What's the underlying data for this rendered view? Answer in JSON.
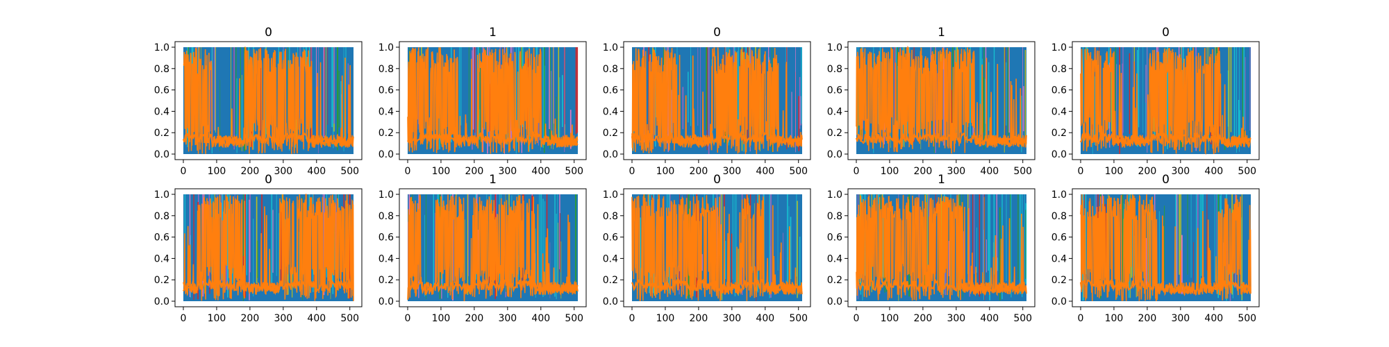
{
  "figure": {
    "background": "#ffffff",
    "grid": false,
    "colors": {
      "blue": "#1f77b4",
      "orange": "#ff7f0e",
      "cyan": "#17becf",
      "olive": "#bcbd22",
      "green": "#2ca02c",
      "pink": "#e377c2",
      "red": "#d62728",
      "purple": "#9467bd"
    }
  },
  "chart_data": [
    {
      "type": "line",
      "title": "0",
      "xlabel": "",
      "ylabel": "",
      "xlim": [
        0,
        511
      ],
      "ylim": [
        0,
        1
      ],
      "xticks": [
        "0",
        "100",
        "200",
        "300",
        "400",
        "500"
      ],
      "yticks": [
        "0.0",
        "0.2",
        "0.4",
        "0.6",
        "0.8",
        "1.0"
      ],
      "orange_high_regions": [
        [
          0,
          85
        ],
        [
          185,
          385
        ]
      ],
      "series": [
        {
          "values_summary": "dense overlapping lines in range 0–1, 512 points each"
        }
      ]
    },
    {
      "type": "line",
      "title": "1",
      "xlabel": "",
      "ylabel": "",
      "xlim": [
        0,
        511
      ],
      "ylim": [
        0,
        1
      ],
      "xticks": [
        "0",
        "100",
        "200",
        "300",
        "400",
        "500"
      ],
      "yticks": [
        "0.0",
        "0.2",
        "0.4",
        "0.6",
        "0.8",
        "1.0"
      ],
      "orange_high_regions": [
        [
          0,
          150
        ],
        [
          210,
          400
        ]
      ],
      "series": [
        {
          "values_summary": "dense overlapping lines in range 0–1, 512 points each"
        }
      ]
    },
    {
      "type": "line",
      "title": "0",
      "xlabel": "",
      "ylabel": "",
      "xlim": [
        0,
        511
      ],
      "ylim": [
        0,
        1
      ],
      "xticks": [
        "0",
        "100",
        "200",
        "300",
        "400",
        "500"
      ],
      "yticks": [
        "0.0",
        "0.2",
        "0.4",
        "0.6",
        "0.8",
        "1.0"
      ],
      "orange_high_regions": [
        [
          0,
          130
        ],
        [
          235,
          440
        ]
      ],
      "series": [
        {
          "values_summary": "dense overlapping lines in range 0–1, 512 points each"
        }
      ]
    },
    {
      "type": "line",
      "title": "1",
      "xlabel": "",
      "ylabel": "",
      "xlim": [
        0,
        511
      ],
      "ylim": [
        0,
        1
      ],
      "xticks": [
        "0",
        "100",
        "200",
        "300",
        "400",
        "500"
      ],
      "yticks": [
        "0.0",
        "0.2",
        "0.4",
        "0.6",
        "0.8",
        "1.0"
      ],
      "orange_high_regions": [
        [
          0,
          355
        ]
      ],
      "series": [
        {
          "values_summary": "dense overlapping lines in range 0–1, 512 points each"
        }
      ]
    },
    {
      "type": "line",
      "title": "0",
      "xlabel": "",
      "ylabel": "",
      "xlim": [
        0,
        511
      ],
      "ylim": [
        0,
        1
      ],
      "xticks": [
        "0",
        "100",
        "200",
        "300",
        "400",
        "500"
      ],
      "yticks": [
        "0.0",
        "0.2",
        "0.4",
        "0.6",
        "0.8",
        "1.0"
      ],
      "orange_high_regions": [
        [
          0,
          100
        ],
        [
          205,
          420
        ]
      ],
      "series": [
        {
          "values_summary": "dense overlapping lines in range 0–1, 512 points each"
        }
      ]
    },
    {
      "type": "line",
      "title": "0",
      "xlabel": "",
      "ylabel": "",
      "xlim": [
        0,
        511
      ],
      "ylim": [
        0,
        1
      ],
      "xticks": [
        "0",
        "100",
        "200",
        "300",
        "400",
        "500"
      ],
      "yticks": [
        "0.0",
        "0.2",
        "0.4",
        "0.6",
        "0.8",
        "1.0"
      ],
      "orange_high_regions": [
        [
          40,
          185
        ],
        [
          290,
          511
        ]
      ],
      "series": [
        {
          "values_summary": "dense overlapping lines in range 0–1, 512 points each"
        }
      ]
    },
    {
      "type": "line",
      "title": "1",
      "xlabel": "",
      "ylabel": "",
      "xlim": [
        0,
        511
      ],
      "ylim": [
        0,
        1
      ],
      "xticks": [
        "0",
        "100",
        "200",
        "300",
        "400",
        "500"
      ],
      "yticks": [
        "0.0",
        "0.2",
        "0.4",
        "0.6",
        "0.8",
        "1.0"
      ],
      "orange_high_regions": [
        [
          0,
          40
        ],
        [
          85,
          170
        ],
        [
          195,
          380
        ]
      ],
      "series": [
        {
          "values_summary": "dense overlapping lines in range 0–1, 512 points each"
        }
      ]
    },
    {
      "type": "line",
      "title": "0",
      "xlabel": "",
      "ylabel": "",
      "xlim": [
        0,
        511
      ],
      "ylim": [
        0,
        1
      ],
      "xticks": [
        "0",
        "100",
        "200",
        "300",
        "400",
        "500"
      ],
      "yticks": [
        "0.0",
        "0.2",
        "0.4",
        "0.6",
        "0.8",
        "1.0"
      ],
      "orange_high_regions": [
        [
          0,
          265
        ],
        [
          330,
          395
        ]
      ],
      "series": [
        {
          "values_summary": "dense overlapping lines in range 0–1, 512 points each"
        }
      ]
    },
    {
      "type": "line",
      "title": "1",
      "xlabel": "",
      "ylabel": "",
      "xlim": [
        0,
        511
      ],
      "ylim": [
        0,
        1
      ],
      "xticks": [
        "0",
        "100",
        "200",
        "300",
        "400",
        "500"
      ],
      "yticks": [
        "0.0",
        "0.2",
        "0.4",
        "0.6",
        "0.8",
        "1.0"
      ],
      "orange_high_regions": [
        [
          0,
          320
        ]
      ],
      "series": [
        {
          "values_summary": "dense overlapping lines in range 0–1, 512 points each"
        }
      ]
    },
    {
      "type": "line",
      "title": "0",
      "xlabel": "",
      "ylabel": "",
      "xlim": [
        0,
        511
      ],
      "ylim": [
        0,
        1
      ],
      "xticks": [
        "0",
        "100",
        "200",
        "300",
        "400",
        "500"
      ],
      "yticks": [
        "0.0",
        "0.2",
        "0.4",
        "0.6",
        "0.8",
        "1.0"
      ],
      "orange_high_regions": [
        [
          0,
          230
        ],
        [
          420,
          480
        ]
      ],
      "series": [
        {
          "values_summary": "dense overlapping lines in range 0–1, 512 points each"
        }
      ]
    }
  ]
}
